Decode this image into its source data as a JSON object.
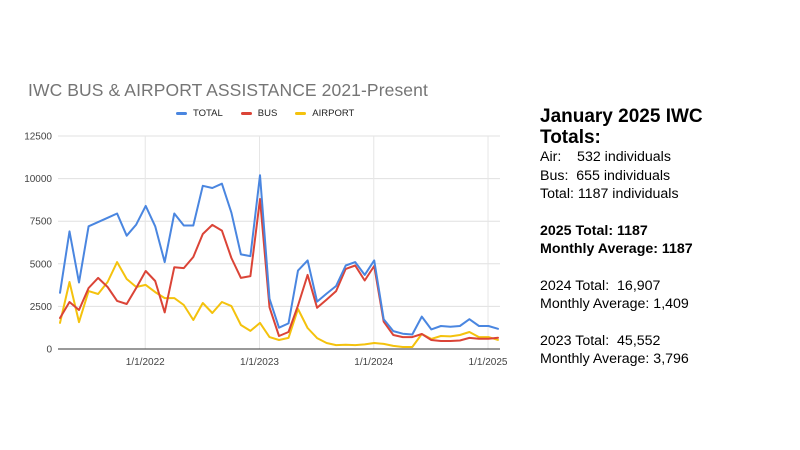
{
  "chart_data": {
    "type": "line",
    "title": "IWC BUS & AIRPORT ASSISTANCE 2021-Present",
    "xlabel": "",
    "ylabel": "",
    "ylim": [
      0,
      12500
    ],
    "yticks": [
      0,
      2500,
      5000,
      7500,
      10000,
      12500
    ],
    "xticks": [
      {
        "label": "1/1/2022",
        "index": 9.95
      },
      {
        "label": "1/1/2023",
        "index": 21.95
      },
      {
        "label": "1/1/2024",
        "index": 33.95
      },
      {
        "label": "1/1/2025",
        "index": 45.95
      }
    ],
    "grid": true,
    "legend_position": "top-center",
    "x": [
      "Mar 2021",
      "Apr 2021",
      "May 2021",
      "Jun 2021",
      "Jul 2021",
      "Aug 2021",
      "Sep 2021",
      "Oct 2021",
      "Nov 2021",
      "Dec 2021",
      "Jan 2022",
      "Feb 2022",
      "Mar 2022",
      "Apr 2022",
      "May 2022",
      "Jun 2022",
      "Jul 2022",
      "Aug 2022",
      "Sep 2022",
      "Oct 2022",
      "Nov 2022",
      "Dec 2022",
      "Jan 2023",
      "Feb 2023",
      "Mar 2023",
      "Apr 2023",
      "May 2023",
      "Jun 2023",
      "Jul 2023",
      "Aug 2023",
      "Sep 2023",
      "Oct 2023",
      "Nov 2023",
      "Dec 2023",
      "Jan 2024",
      "Feb 2024",
      "Mar 2024",
      "Apr 2024",
      "May 2024",
      "Jun 2024",
      "Jul 2024",
      "Aug 2024",
      "Sep 2024",
      "Oct 2024",
      "Nov 2024",
      "Dec 2024",
      "Jan 2025"
    ],
    "series": [
      {
        "name": "TOTAL",
        "color": "#4a86e0",
        "values": [
          3300,
          6900,
          3900,
          7200,
          7450,
          7700,
          7950,
          6650,
          7300,
          8400,
          7200,
          5100,
          7950,
          7250,
          7250,
          9580,
          9450,
          9700,
          8000,
          5550,
          5450,
          10200,
          2950,
          1250,
          1500,
          4600,
          5200,
          2780,
          3250,
          3700,
          4900,
          5100,
          4350,
          5200,
          1750,
          1050,
          900,
          850,
          1900,
          1150,
          1350,
          1300,
          1350,
          1750,
          1350,
          1350,
          1187
        ]
      },
      {
        "name": "BUS",
        "color": "#db4437",
        "values": [
          1820,
          2760,
          2290,
          3580,
          4170,
          3640,
          2820,
          2640,
          3580,
          4580,
          3990,
          2150,
          4800,
          4750,
          5400,
          6750,
          7280,
          6950,
          5340,
          4170,
          4280,
          8800,
          2450,
          760,
          1000,
          2550,
          4350,
          2420,
          2900,
          3400,
          4700,
          4900,
          4020,
          4870,
          1600,
          820,
          700,
          700,
          880,
          530,
          470,
          470,
          500,
          650,
          600,
          600,
          655
        ]
      },
      {
        "name": "AIRPORT",
        "color": "#f4c20d",
        "values": [
          1530,
          3930,
          1580,
          3400,
          3230,
          3930,
          5100,
          4110,
          3640,
          3760,
          3340,
          2990,
          2990,
          2580,
          1700,
          2700,
          2110,
          2760,
          2520,
          1410,
          1060,
          1530,
          700,
          530,
          650,
          2350,
          1230,
          640,
          350,
          230,
          250,
          230,
          270,
          350,
          300,
          180,
          120,
          120,
          880,
          590,
          760,
          740,
          820,
          1000,
          700,
          700,
          532
        ]
      }
    ]
  },
  "panel": {
    "title_line1": "January 2025 IWC",
    "title_line2": "Totals:",
    "air": "Air:    532 individuals",
    "bus": "Bus:  655 individuals",
    "total": "Total: 1187 individuals",
    "y2025_total": "2025 Total: 1187",
    "y2025_avg": "Monthly Average: 1187",
    "y2024_total": "2024 Total:  16,907",
    "y2024_avg": "Monthly Average: 1,409",
    "y2023_total": "2023 Total:  45,552",
    "y2023_avg": "Monthly Average: 3,796"
  }
}
